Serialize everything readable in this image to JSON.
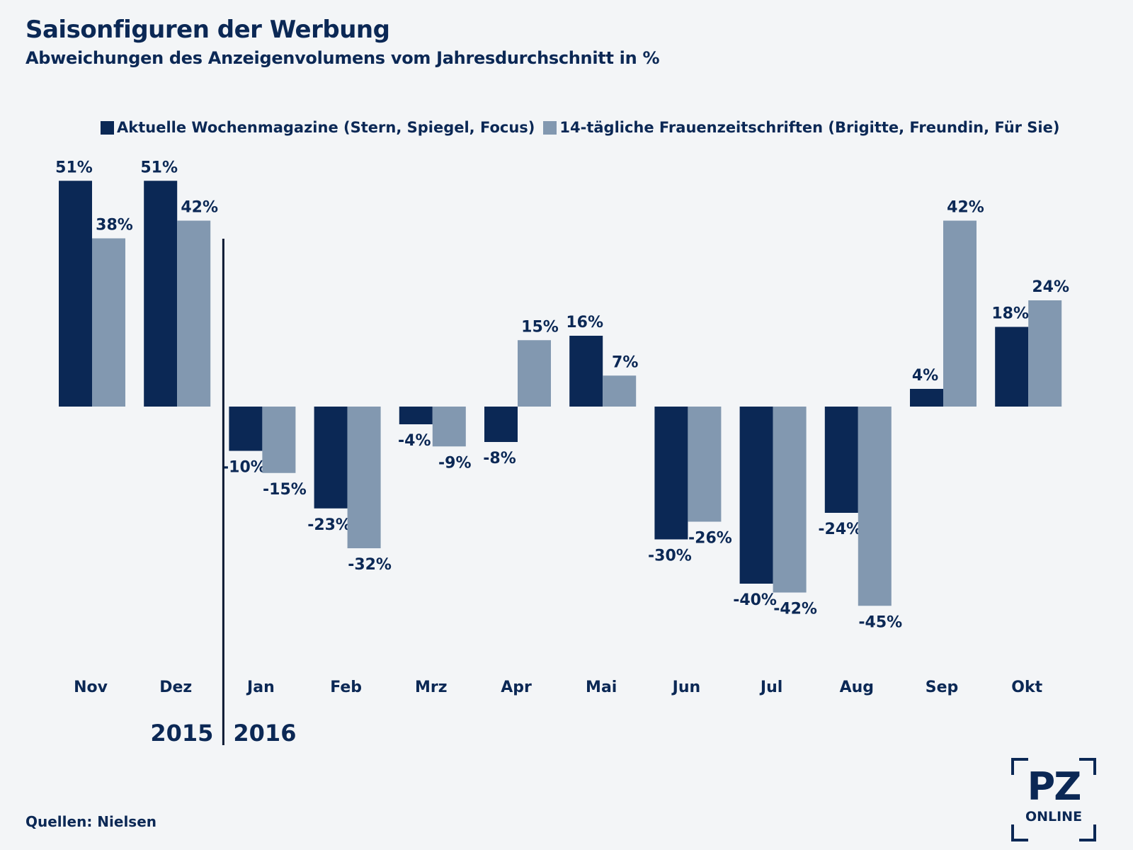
{
  "chart_data": {
    "type": "bar",
    "title": "Saisonfiguren der Werbung",
    "subtitle": "Abweichungen des Anzeigenvolumens vom Jahresdurchschnitt in %",
    "categories": [
      "Nov",
      "Dez",
      "Jan",
      "Feb",
      "Mrz",
      "Apr",
      "Mai",
      "Jun",
      "Jul",
      "Aug",
      "Sep",
      "Okt"
    ],
    "series": [
      {
        "name": "Aktuelle Wochenmagazine (Stern, Spiegel, Focus)",
        "color": "#0b2855",
        "values": [
          51,
          51,
          -10,
          -23,
          -4,
          -8,
          16,
          -30,
          -40,
          -24,
          4,
          18
        ]
      },
      {
        "name": "14-tägliche Frauenzeitschriften (Brigitte, Freundin, Für Sie)",
        "color": "#8298b0",
        "values": [
          38,
          42,
          -15,
          -32,
          -9,
          15,
          7,
          -26,
          -42,
          -45,
          42,
          24
        ]
      }
    ],
    "year_labels": [
      "2015",
      "2016"
    ],
    "value_suffix": "%",
    "legend_position": "top",
    "grid": false
  },
  "source": "Quellen: Nielsen",
  "logo": {
    "main": "PZ",
    "sub": "ONLINE"
  },
  "colors": {
    "text": "#0b2855",
    "background": "#f3f5f7"
  }
}
